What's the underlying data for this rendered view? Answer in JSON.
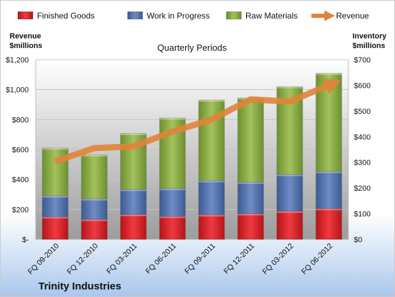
{
  "chart_data": {
    "type": "bar",
    "stacked": true,
    "subtitle": "Quarterly Periods",
    "company": "Trinity Industries",
    "left_axis_title": [
      "Revenue",
      "$millions"
    ],
    "right_axis_title": [
      "Inventory",
      "$millions"
    ],
    "categories": [
      "FQ 09-2010",
      "FQ 12-2010",
      "FQ 03-2011",
      "FQ 06-2011",
      "FQ 09-2011",
      "FQ 12-2011",
      "FQ 03-2012",
      "FQ 06-2012"
    ],
    "left_ticks": [
      "$-",
      "$200",
      "$400",
      "$600",
      "$800",
      "$1,000",
      "$1,200"
    ],
    "right_ticks": [
      "$0",
      "$100",
      "$200",
      "$300",
      "$400",
      "$500",
      "$600",
      "$700"
    ],
    "left_range": [
      0,
      1200
    ],
    "right_range": [
      0,
      700
    ],
    "legend_position": "top",
    "series": [
      {
        "name": "Finished Goods",
        "axis": "right",
        "kind": "bar",
        "color": "#d8232a",
        "values": [
          88,
          78,
          97,
          90,
          96,
          100,
          110,
          120
        ]
      },
      {
        "name": "Work in Progress",
        "axis": "right",
        "kind": "bar",
        "color": "#4f6fa8",
        "values": [
          82,
          80,
          98,
          108,
          133,
          123,
          143,
          145
        ]
      },
      {
        "name": "Raw Materials",
        "axis": "right",
        "kind": "bar",
        "color": "#86a844",
        "values": [
          186,
          172,
          218,
          275,
          314,
          328,
          342,
          382
        ]
      },
      {
        "name": "Revenue",
        "axis": "left",
        "kind": "line",
        "color": "#e2833a",
        "values": [
          520,
          610,
          620,
          720,
          800,
          935,
          920,
          1030
        ]
      }
    ]
  }
}
